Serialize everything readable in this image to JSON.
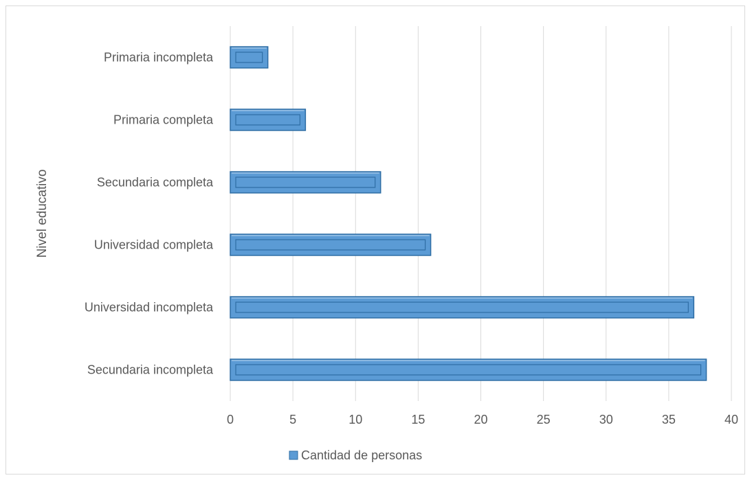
{
  "chart_data": {
    "type": "bar",
    "orientation": "horizontal",
    "categories": [
      "Secundaria incompleta",
      "Universidad incompleta",
      "Universidad completa",
      "Secundaria completa",
      "Primaria completa",
      "Primaria incompleta"
    ],
    "series": [
      {
        "name": "Cantidad de personas",
        "values": [
          38,
          37,
          16,
          12,
          6,
          3
        ]
      }
    ],
    "title": "",
    "xlabel": "",
    "ylabel": "Nivel educativo",
    "xlim": [
      0,
      40
    ],
    "x_ticks": [
      "0",
      "5",
      "10",
      "15",
      "20",
      "25",
      "30",
      "35",
      "40"
    ],
    "grid": "vertical",
    "legend_position": "bottom",
    "colors": {
      "bar": "#5b9bd5",
      "bar_dark": "#2e6da4",
      "bar_light": "#9dc3e6",
      "grid": "#d9d9d9"
    }
  }
}
